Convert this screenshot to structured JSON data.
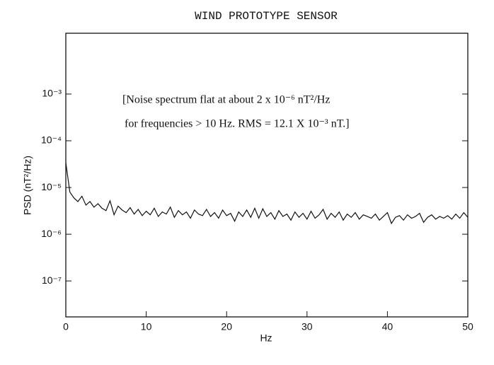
{
  "chart_data": {
    "type": "line",
    "title": "WIND PROTOTYPE SENSOR",
    "x_label": "Hz",
    "y_label": "PSD (nT²/Hz)",
    "annotations": [
      "[Noise spectrum flat at about 2 x 10⁻⁶ nT²/Hz",
      "for frequencies > 10 Hz.  RMS = 12.1 X 10⁻³ nT.]"
    ],
    "log_y": true,
    "xlim": [
      0,
      50
    ],
    "ylim": [
      1.7e-08,
      0.02
    ],
    "xticks": [
      0,
      10,
      20,
      30,
      40,
      50
    ],
    "yticks": [
      {
        "value": 0.001,
        "label": "10⁻³"
      },
      {
        "value": 0.0001,
        "label": "10⁻⁴"
      },
      {
        "value": 1e-05,
        "label": "10⁻⁵"
      },
      {
        "value": 1e-06,
        "label": "10⁻⁶"
      },
      {
        "value": 1e-07,
        "label": "10⁻⁷"
      }
    ],
    "color": "#111111",
    "x": [
      0,
      0.5,
      1,
      1.5,
      2,
      2.5,
      3,
      3.5,
      4,
      4.5,
      5,
      5.5,
      6,
      6.5,
      7,
      7.5,
      8,
      8.5,
      9,
      9.5,
      10,
      10.5,
      11,
      11.5,
      12,
      12.5,
      13,
      13.5,
      14,
      14.5,
      15,
      15.5,
      16,
      16.5,
      17,
      17.5,
      18,
      18.5,
      19,
      19.5,
      20,
      20.5,
      21,
      21.5,
      22,
      22.5,
      23,
      23.5,
      24,
      24.5,
      25,
      25.5,
      26,
      26.5,
      27,
      27.5,
      28,
      28.5,
      29,
      29.5,
      30,
      30.5,
      31,
      31.5,
      32,
      32.5,
      33,
      33.5,
      34,
      34.5,
      35,
      35.5,
      36,
      36.5,
      37,
      37.5,
      38,
      38.5,
      39,
      39.5,
      40,
      40.5,
      41,
      41.5,
      42,
      42.5,
      43,
      43.5,
      44,
      44.5,
      45,
      45.5,
      46,
      46.5,
      47,
      47.5,
      48,
      48.5,
      49,
      49.5,
      50
    ],
    "values": [
      3.4e-05,
      8e-06,
      6e-06,
      5e-06,
      6.5e-06,
      4.2e-06,
      5e-06,
      3.8e-06,
      4.5e-06,
      3.6e-06,
      3.2e-06,
      5.2e-06,
      2.6e-06,
      4e-06,
      3.3e-06,
      2.9e-06,
      3.7e-06,
      2.7e-06,
      3.4e-06,
      2.5e-06,
      3.1e-06,
      2.6e-06,
      3.6e-06,
      2.4e-06,
      3e-06,
      2.7e-06,
      3.8e-06,
      2.3e-06,
      3.2e-06,
      2.6e-06,
      3e-06,
      2.2e-06,
      3.3e-06,
      2.7e-06,
      2.5e-06,
      3.4e-06,
      2.4e-06,
      2.9e-06,
      2.2e-06,
      3.3e-06,
      2.5e-06,
      2.8e-06,
      1.9e-06,
      3e-06,
      2.4e-06,
      3.3e-06,
      2.3e-06,
      3.6e-06,
      2.2e-06,
      3.5e-06,
      2.4e-06,
      2.9e-06,
      2.1e-06,
      3.2e-06,
      2.4e-06,
      2.7e-06,
      2e-06,
      3e-06,
      2.3e-06,
      2.8e-06,
      2.1e-06,
      3.1e-06,
      2.2e-06,
      2.6e-06,
      3.4e-06,
      2.1e-06,
      2.8e-06,
      2.3e-06,
      3e-06,
      2e-06,
      2.7e-06,
      2.3e-06,
      2.9e-06,
      2.1e-06,
      2.6e-06,
      2.4e-06,
      2.2e-06,
      2.7e-06,
      2e-06,
      2.4e-06,
      2.9e-06,
      1.7e-06,
      2.3e-06,
      2.5e-06,
      2e-06,
      2.6e-06,
      2.2e-06,
      2.4e-06,
      2.8e-06,
      1.8e-06,
      2.3e-06,
      2.6e-06,
      2.1e-06,
      2.4e-06,
      2.2e-06,
      2.5e-06,
      2.1e-06,
      2.7e-06,
      2.2e-06,
      2.9e-06,
      2.3e-06
    ]
  }
}
